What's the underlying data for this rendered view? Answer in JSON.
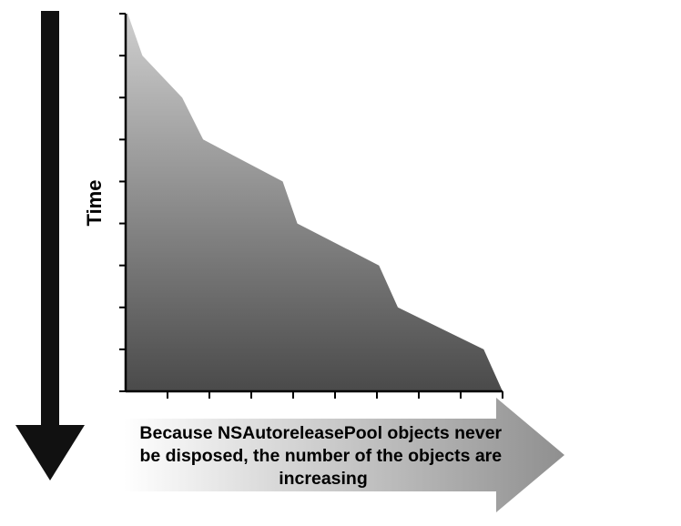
{
  "chart_data": {
    "type": "area",
    "title": "",
    "ylabel": "Time",
    "xlabel": "Because NSAutoreleasePool objects never be disposed, the number of the objects are increasing",
    "xlabel_lines": [
      "Because NSAutoreleasePool objects never",
      "be disposed, the number of the objects are",
      "increasing"
    ],
    "x_ticks": 9,
    "y_ticks": 9,
    "xlim": [
      0,
      9
    ],
    "ylim": [
      0,
      9
    ],
    "y_inverted": true,
    "grid": false,
    "series": [
      {
        "values_time": [
          0,
          1,
          2,
          3,
          4,
          5,
          6,
          7,
          8,
          9
        ],
        "values_objects": [
          0.05,
          0.4,
          1.35,
          1.85,
          3.75,
          4.1,
          6.05,
          6.5,
          8.55,
          9.0
        ]
      }
    ],
    "colors": {
      "area_top": "#cfcfcf",
      "area_bottom": "#4a4a4a",
      "axis": "#000000",
      "time_arrow": "#111111",
      "x_arrow_left": "#ffffff",
      "x_arrow_right": "#8f8f8f"
    }
  }
}
